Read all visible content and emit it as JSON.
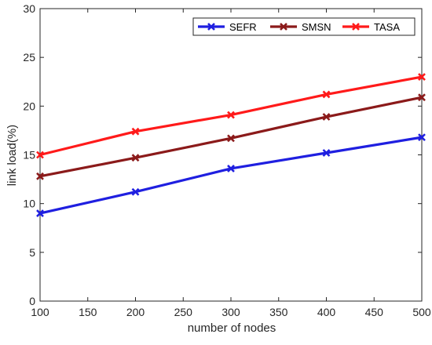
{
  "chart_data": {
    "type": "line",
    "title": "",
    "xlabel": "number of nodes",
    "ylabel": "link load(%)",
    "xlim": [
      100,
      500
    ],
    "ylim": [
      0,
      30
    ],
    "xticks": [
      100,
      150,
      200,
      250,
      300,
      350,
      400,
      450,
      500
    ],
    "yticks": [
      0,
      5,
      10,
      15,
      20,
      25,
      30
    ],
    "grid": false,
    "legend_position": "top-right",
    "legend_orientation": "horizontal",
    "x": [
      100,
      200,
      300,
      400,
      500
    ],
    "series": [
      {
        "name": "SEFR",
        "color": "#1f1fe0",
        "marker": "x",
        "values": [
          9.0,
          11.2,
          13.6,
          15.2,
          16.8
        ]
      },
      {
        "name": "SMSN",
        "color": "#8b1a1a",
        "marker": "x",
        "values": [
          12.8,
          14.7,
          16.7,
          18.9,
          20.9
        ]
      },
      {
        "name": "TASA",
        "color": "#ff1a1a",
        "marker": "x",
        "values": [
          15.0,
          17.4,
          19.1,
          21.2,
          23.0
        ]
      }
    ]
  }
}
